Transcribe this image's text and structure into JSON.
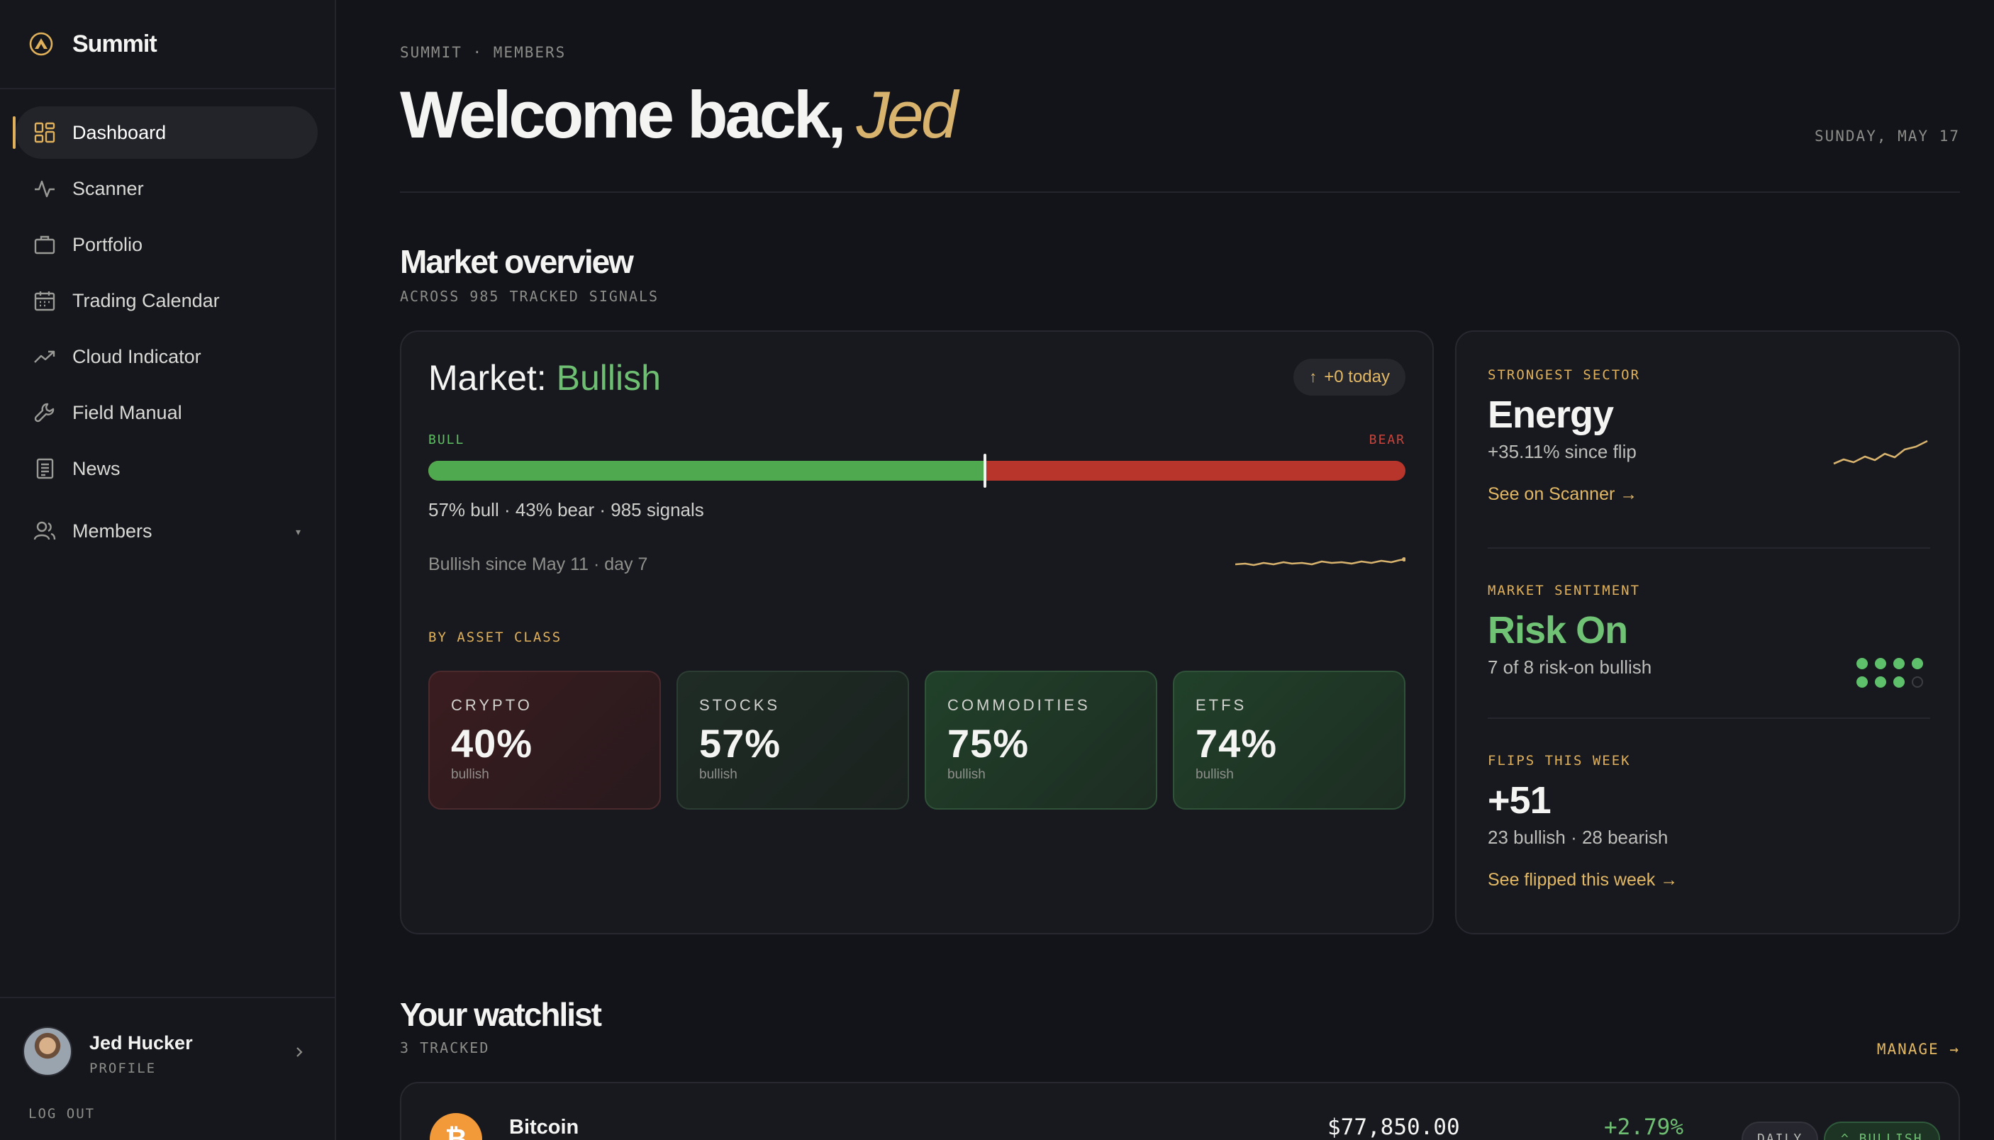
{
  "app": {
    "name": "Summit"
  },
  "sidebar": {
    "items": [
      {
        "label": "Dashboard",
        "icon": "grid-icon",
        "active": true
      },
      {
        "label": "Scanner",
        "icon": "pulse-icon"
      },
      {
        "label": "Portfolio",
        "icon": "briefcase-icon"
      },
      {
        "label": "Trading Calendar",
        "icon": "calendar-icon"
      },
      {
        "label": "Cloud Indicator",
        "icon": "trend-up-icon"
      },
      {
        "label": "Field Manual",
        "icon": "wrench-icon"
      },
      {
        "label": "News",
        "icon": "document-icon"
      },
      {
        "label": "Members",
        "icon": "users-icon"
      }
    ],
    "profile": {
      "name": "Jed Hucker",
      "role": "PROFILE",
      "logout": "LOG OUT"
    }
  },
  "header": {
    "breadcrumb": "SUMMIT · MEMBERS",
    "welcome": "Welcome back,",
    "user_first": "Jed",
    "date": "SUNDAY, MAY 17"
  },
  "overview": {
    "title": "Market overview",
    "subtitle": "ACROSS 985 TRACKED SIGNALS",
    "market_label": "Market:",
    "market_state": "Bullish",
    "today": "+0 today",
    "bull_label": "BULL",
    "bear_label": "BEAR",
    "bull_fraction": 0.57,
    "summary": "57% bull · 43% bear · 985 signals",
    "since": "Bullish since May 11 · day 7",
    "asset_heading": "BY ASSET CLASS",
    "assets": [
      {
        "name": "CRYPTO",
        "value": "40%",
        "state": "bullish"
      },
      {
        "name": "STOCKS",
        "value": "57%",
        "state": "bullish"
      },
      {
        "name": "COMMODITIES",
        "value": "75%",
        "state": "bullish"
      },
      {
        "name": "ETFS",
        "value": "74%",
        "state": "bullish"
      }
    ]
  },
  "stats": {
    "sector": {
      "label": "STRONGEST SECTOR",
      "value": "Energy",
      "sub": "+35.11% since flip",
      "link": "See on Scanner →"
    },
    "sentiment": {
      "label": "MARKET SENTIMENT",
      "value": "Risk On",
      "sub": "7 of 8 risk-on bullish",
      "on": 7,
      "total": 8
    },
    "flips": {
      "label": "FLIPS THIS WEEK",
      "value": "+51",
      "sub": "23 bullish · 28 bearish",
      "link": "See flipped this week →"
    }
  },
  "watchlist": {
    "title": "Your watchlist",
    "subtitle": "3 TRACKED",
    "manage": "MANAGE →",
    "rows": [
      {
        "name": "Bitcoin",
        "symbol": "₿",
        "price": "$77,850.00",
        "change": "+2.79%",
        "timeframe": "DAILY",
        "signal": "^ BULLISH"
      }
    ]
  },
  "colors": {
    "accent": "#e0b15a",
    "bull": "#4fa94f",
    "bear": "#b8352c",
    "background": "#131419"
  }
}
